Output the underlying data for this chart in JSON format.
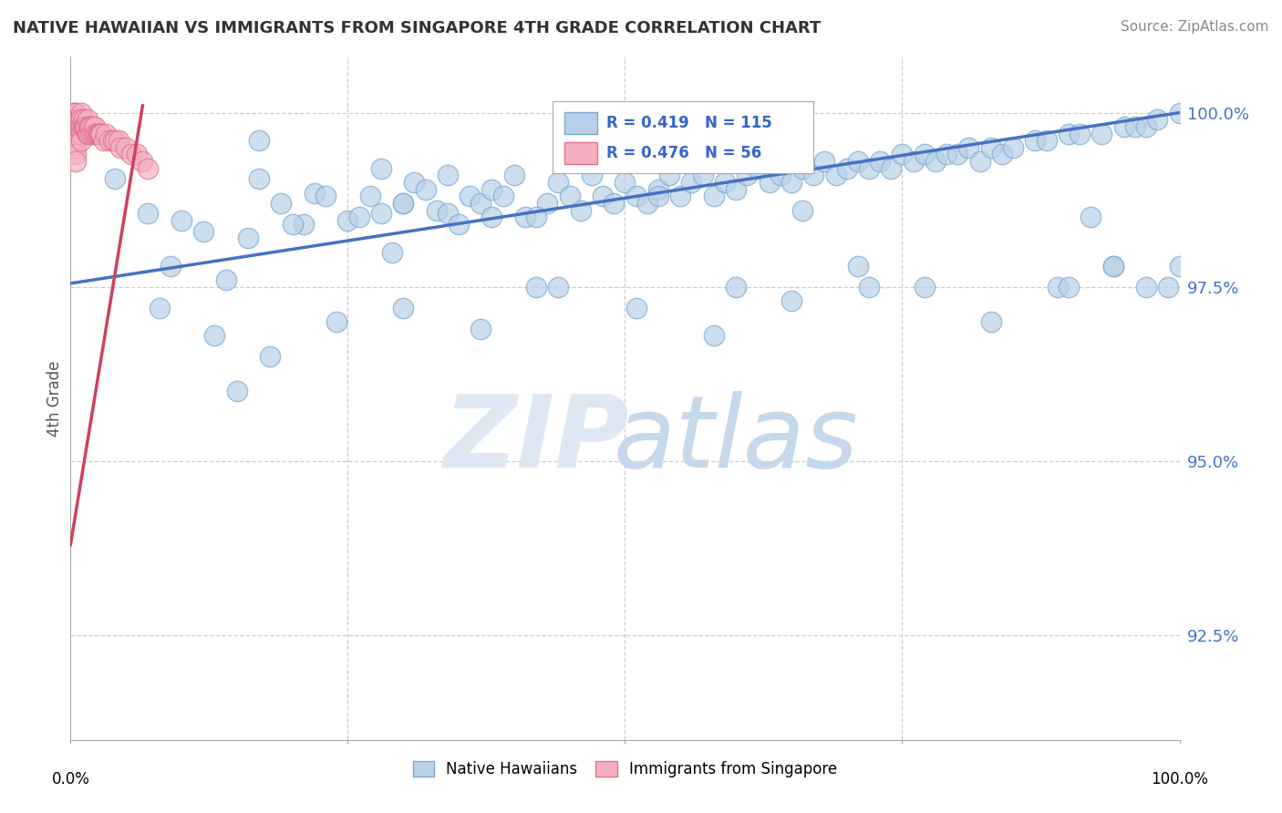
{
  "title": "NATIVE HAWAIIAN VS IMMIGRANTS FROM SINGAPORE 4TH GRADE CORRELATION CHART",
  "source": "Source: ZipAtlas.com",
  "ylabel": "4th Grade",
  "ytick_labels": [
    "92.5%",
    "95.0%",
    "97.5%",
    "100.0%"
  ],
  "ytick_values": [
    0.925,
    0.95,
    0.975,
    1.0
  ],
  "xmin": 0.0,
  "xmax": 1.0,
  "ymin": 0.91,
  "ymax": 1.008,
  "blue_color": "#b8d0e8",
  "blue_edge": "#7aaad0",
  "pink_color": "#f4b0c0",
  "pink_edge": "#e07090",
  "trend_blue": "#4472c4",
  "trend_pink": "#d04060",
  "legend_label_blue": "Native Hawaiians",
  "legend_label_pink": "Immigrants from Singapore",
  "blue_trend_x0": 0.0,
  "blue_trend_x1": 1.0,
  "blue_trend_y0": 0.9755,
  "blue_trend_y1": 1.0,
  "pink_trend_x0": 0.0,
  "pink_trend_x1": 0.065,
  "pink_trend_y0": 0.938,
  "pink_trend_y1": 1.001,
  "blue_x": [
    0.04,
    0.07,
    0.1,
    0.12,
    0.14,
    0.16,
    0.17,
    0.17,
    0.19,
    0.21,
    0.22,
    0.23,
    0.25,
    0.26,
    0.27,
    0.28,
    0.28,
    0.29,
    0.3,
    0.31,
    0.32,
    0.33,
    0.34,
    0.34,
    0.35,
    0.36,
    0.37,
    0.38,
    0.38,
    0.39,
    0.4,
    0.41,
    0.42,
    0.43,
    0.44,
    0.45,
    0.46,
    0.47,
    0.48,
    0.49,
    0.5,
    0.51,
    0.52,
    0.53,
    0.54,
    0.55,
    0.56,
    0.57,
    0.58,
    0.59,
    0.6,
    0.61,
    0.62,
    0.63,
    0.64,
    0.65,
    0.66,
    0.67,
    0.68,
    0.69,
    0.7,
    0.71,
    0.72,
    0.73,
    0.74,
    0.75,
    0.76,
    0.77,
    0.78,
    0.79,
    0.8,
    0.81,
    0.82,
    0.83,
    0.84,
    0.85,
    0.87,
    0.88,
    0.89,
    0.9,
    0.91,
    0.92,
    0.93,
    0.94,
    0.95,
    0.96,
    0.97,
    0.98,
    0.99,
    1.0,
    0.13,
    0.18,
    0.24,
    0.3,
    0.37,
    0.44,
    0.51,
    0.58,
    0.65,
    0.71,
    0.77,
    0.83,
    0.9,
    0.94,
    0.97,
    1.0,
    0.08,
    0.15,
    0.09,
    0.2,
    0.3,
    0.42,
    0.53,
    0.6,
    0.66,
    0.72
  ],
  "blue_y": [
    0.9905,
    0.9855,
    0.9845,
    0.983,
    0.976,
    0.982,
    0.9905,
    0.996,
    0.987,
    0.984,
    0.9885,
    0.988,
    0.9845,
    0.985,
    0.988,
    0.9855,
    0.992,
    0.98,
    0.987,
    0.99,
    0.989,
    0.986,
    0.9855,
    0.991,
    0.984,
    0.988,
    0.987,
    0.985,
    0.989,
    0.988,
    0.991,
    0.985,
    0.975,
    0.987,
    0.99,
    0.988,
    0.986,
    0.991,
    0.988,
    0.987,
    0.99,
    0.988,
    0.987,
    0.989,
    0.991,
    0.988,
    0.99,
    0.991,
    0.988,
    0.99,
    0.989,
    0.991,
    0.992,
    0.99,
    0.991,
    0.99,
    0.992,
    0.991,
    0.993,
    0.991,
    0.992,
    0.993,
    0.992,
    0.993,
    0.992,
    0.994,
    0.993,
    0.994,
    0.993,
    0.994,
    0.994,
    0.995,
    0.993,
    0.995,
    0.994,
    0.995,
    0.996,
    0.996,
    0.975,
    0.997,
    0.997,
    0.985,
    0.997,
    0.978,
    0.998,
    0.998,
    0.998,
    0.999,
    0.975,
    1.0,
    0.968,
    0.965,
    0.97,
    0.972,
    0.969,
    0.975,
    0.972,
    0.968,
    0.973,
    0.978,
    0.975,
    0.97,
    0.975,
    0.978,
    0.975,
    0.978,
    0.972,
    0.96,
    0.978,
    0.984,
    0.987,
    0.985,
    0.988,
    0.975,
    0.986,
    0.975
  ],
  "pink_x": [
    0.003,
    0.003,
    0.004,
    0.004,
    0.005,
    0.005,
    0.005,
    0.005,
    0.005,
    0.005,
    0.005,
    0.005,
    0.006,
    0.006,
    0.007,
    0.008,
    0.008,
    0.009,
    0.01,
    0.01,
    0.01,
    0.01,
    0.01,
    0.011,
    0.012,
    0.012,
    0.013,
    0.014,
    0.015,
    0.015,
    0.016,
    0.016,
    0.017,
    0.018,
    0.019,
    0.02,
    0.021,
    0.022,
    0.023,
    0.024,
    0.025,
    0.026,
    0.027,
    0.028,
    0.03,
    0.032,
    0.035,
    0.038,
    0.04,
    0.043,
    0.045,
    0.05,
    0.055,
    0.06,
    0.065,
    0.07
  ],
  "pink_y": [
    1.0,
    0.999,
    1.0,
    0.999,
    1.0,
    0.999,
    0.998,
    0.997,
    0.996,
    0.995,
    0.994,
    0.993,
    0.999,
    0.998,
    0.999,
    0.999,
    0.998,
    0.998,
    1.0,
    0.999,
    0.998,
    0.997,
    0.996,
    0.998,
    0.999,
    0.998,
    0.998,
    0.998,
    0.999,
    0.997,
    0.998,
    0.997,
    0.998,
    0.998,
    0.997,
    0.998,
    0.997,
    0.998,
    0.997,
    0.997,
    0.997,
    0.997,
    0.997,
    0.997,
    0.996,
    0.997,
    0.996,
    0.996,
    0.996,
    0.996,
    0.995,
    0.995,
    0.994,
    0.994,
    0.993,
    0.992
  ]
}
